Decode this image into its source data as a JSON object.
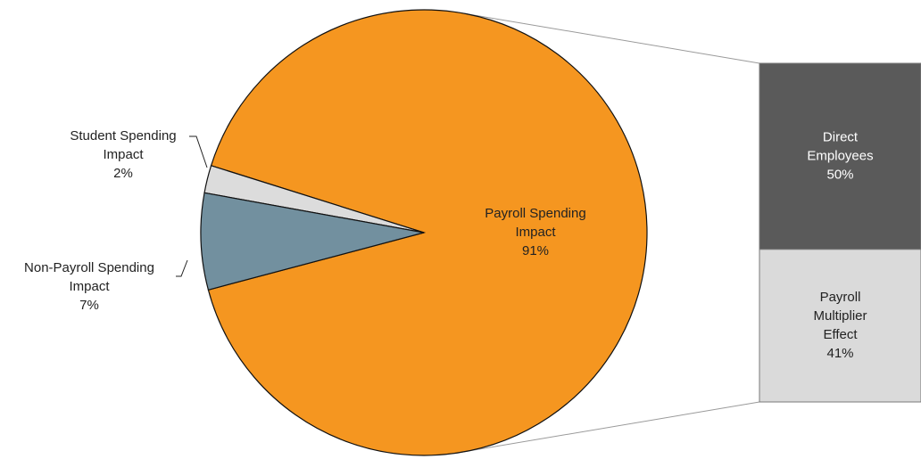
{
  "chart_data": {
    "type": "pie",
    "variant": "bar-of-pie",
    "pie": {
      "slices": [
        {
          "label_lines": [
            "Payroll Spending",
            "Impact",
            "91%"
          ],
          "value": 91,
          "color": "#f59620"
        },
        {
          "label_lines": [
            "Student Spending",
            "Impact",
            "2%"
          ],
          "value": 2,
          "color": "#dcdcdc"
        },
        {
          "label_lines": [
            "Non-Payroll Spending",
            "Impact",
            "7%"
          ],
          "value": 7,
          "color": "#72909f"
        }
      ]
    },
    "breakdown_bar": {
      "of_slice": "Payroll Spending Impact",
      "segments": [
        {
          "label_lines": [
            "Direct",
            "Employees",
            "50%"
          ],
          "value": 50,
          "color": "#5a5a5a",
          "text_color": "#ffffff"
        },
        {
          "label_lines": [
            "Payroll",
            "Multiplier",
            "Effect",
            "41%"
          ],
          "value": 41,
          "color": "#dadada",
          "text_color": "#222222"
        }
      ]
    }
  }
}
